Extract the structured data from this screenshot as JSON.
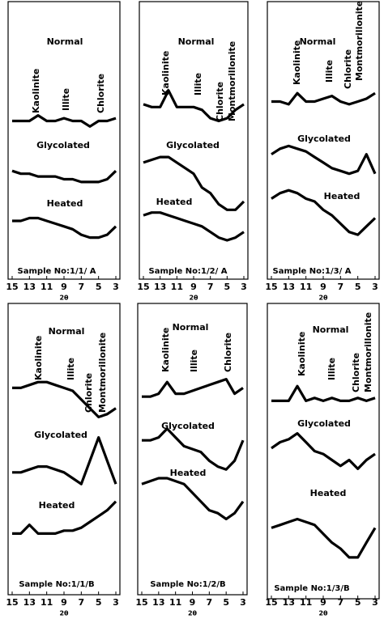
{
  "chart_data": [
    {
      "type": "line",
      "sample": "Sample No:1/1/ A",
      "xlabel": "2θ",
      "xlim": [
        15,
        3
      ],
      "xticks": [
        15,
        13,
        11,
        9,
        7,
        5,
        3
      ],
      "ylim": [
        0,
        100
      ],
      "x": [
        15,
        14,
        13,
        12,
        11,
        10,
        9,
        8,
        7,
        6,
        5,
        4,
        3
      ],
      "peaks": [
        "Kaolinite",
        "Illite",
        "Chlorite"
      ],
      "series": [
        {
          "name": "Normal",
          "color": "#000000",
          "values": [
            57,
            57,
            57,
            59,
            57,
            57,
            58,
            57,
            57,
            55,
            57,
            57,
            58
          ]
        },
        {
          "name": "Glycolated",
          "color": "#000000",
          "values": [
            39,
            38,
            38,
            37,
            37,
            37,
            36,
            36,
            35,
            35,
            35,
            36,
            39
          ]
        },
        {
          "name": "Heated",
          "color": "#000000",
          "values": [
            21,
            21,
            22,
            22,
            21,
            20,
            19,
            18,
            16,
            15,
            15,
            16,
            19
          ]
        }
      ]
    },
    {
      "type": "line",
      "sample": "Sample No:1/2/ A",
      "xlabel": "2θ",
      "xlim": [
        15,
        3
      ],
      "xticks": [
        15,
        13,
        11,
        9,
        7,
        5,
        3
      ],
      "ylim": [
        0,
        100
      ],
      "x": [
        15,
        14,
        13,
        12,
        11,
        10,
        9,
        8,
        7,
        6,
        5,
        4,
        3
      ],
      "peaks": [
        "Kaolinite",
        "Illite",
        "Chlorite",
        "Montmorillonite"
      ],
      "series": [
        {
          "name": "Normal",
          "color": "#000000",
          "values": [
            63,
            62,
            62,
            68,
            62,
            62,
            62,
            61,
            58,
            57,
            58,
            61,
            63
          ]
        },
        {
          "name": "Glycolated",
          "color": "#000000",
          "values": [
            42,
            43,
            44,
            44,
            42,
            40,
            38,
            33,
            31,
            27,
            25,
            25,
            28
          ]
        },
        {
          "name": "Heated",
          "color": "#000000",
          "values": [
            23,
            24,
            24,
            23,
            22,
            21,
            20,
            19,
            17,
            15,
            14,
            15,
            17
          ]
        }
      ]
    },
    {
      "type": "line",
      "sample": "Sample No:1/3/ A",
      "xlabel": "2θ",
      "xlim": [
        15,
        3
      ],
      "xticks": [
        15,
        13,
        11,
        9,
        7,
        5,
        3
      ],
      "ylim": [
        0,
        100
      ],
      "x": [
        15,
        14,
        13,
        12,
        11,
        10,
        9,
        8,
        7,
        6,
        5,
        4,
        3
      ],
      "peaks": [
        "Kaolinite",
        "Illite",
        "Chlorite",
        "Montmorillonite"
      ],
      "series": [
        {
          "name": "Normal",
          "color": "#000000",
          "values": [
            64,
            64,
            63,
            67,
            64,
            64,
            65,
            66,
            64,
            63,
            64,
            65,
            67
          ]
        },
        {
          "name": "Glycolated",
          "color": "#000000",
          "values": [
            45,
            47,
            48,
            47,
            46,
            44,
            42,
            40,
            39,
            38,
            39,
            45,
            38
          ]
        },
        {
          "name": "Heated",
          "color": "#000000",
          "values": [
            29,
            31,
            32,
            31,
            29,
            28,
            25,
            23,
            20,
            17,
            16,
            19,
            22
          ]
        }
      ]
    },
    {
      "type": "line",
      "sample": "Sample No:1/1/B",
      "xlabel": "2θ",
      "xlim": [
        15,
        3
      ],
      "xticks": [
        15,
        13,
        11,
        9,
        7,
        5,
        3
      ],
      "ylim": [
        0,
        100
      ],
      "x": [
        15,
        14,
        13,
        12,
        11,
        10,
        9,
        8,
        7,
        6,
        5,
        4,
        3
      ],
      "peaks": [
        "Kaolinite",
        "Illite",
        "Chlorite",
        "Montmorillonite"
      ],
      "series": [
        {
          "name": "Normal",
          "color": "#000000",
          "values": [
            71,
            71,
            72,
            73,
            73,
            72,
            71,
            70,
            67,
            64,
            61,
            62,
            64
          ]
        },
        {
          "name": "Glycolated",
          "color": "#000000",
          "values": [
            42,
            42,
            43,
            44,
            44,
            43,
            42,
            40,
            38,
            46,
            54,
            46,
            38
          ]
        },
        {
          "name": "Heated",
          "color": "#000000",
          "values": [
            21,
            21,
            24,
            21,
            21,
            21,
            22,
            22,
            23,
            25,
            27,
            29,
            32
          ]
        }
      ]
    },
    {
      "type": "line",
      "sample": "Sample No:1/2/B",
      "xlabel": "2θ",
      "xlim": [
        15,
        3
      ],
      "xticks": [
        15,
        13,
        11,
        9,
        7,
        5,
        3
      ],
      "ylim": [
        0,
        100
      ],
      "x": [
        15,
        14,
        13,
        12,
        11,
        10,
        9,
        8,
        7,
        6,
        5,
        4,
        3
      ],
      "peaks": [
        "Kaolinite",
        "Illite",
        "Chlorite"
      ],
      "series": [
        {
          "name": "Normal",
          "color": "#000000",
          "values": [
            68,
            68,
            69,
            73,
            69,
            69,
            70,
            71,
            72,
            73,
            74,
            69,
            71
          ]
        },
        {
          "name": "Glycolated",
          "color": "#000000",
          "values": [
            53,
            53,
            54,
            57,
            54,
            51,
            50,
            49,
            46,
            44,
            43,
            46,
            53
          ]
        },
        {
          "name": "Heated",
          "color": "#000000",
          "values": [
            38,
            39,
            40,
            40,
            39,
            38,
            35,
            32,
            29,
            28,
            26,
            28,
            32
          ]
        }
      ]
    },
    {
      "type": "line",
      "sample": "Sample No:1/3/B",
      "xlabel": "2θ",
      "xlim": [
        15,
        3
      ],
      "xticks": [
        15,
        13,
        11,
        9,
        7,
        5,
        3
      ],
      "ylim": [
        0,
        100
      ],
      "x": [
        15,
        14,
        13,
        12,
        11,
        10,
        9,
        8,
        7,
        6,
        5,
        4,
        3
      ],
      "peaks": [
        "Kaolinite",
        "Illite",
        "Chlorite",
        "Montmorillonite"
      ],
      "series": [
        {
          "name": "Normal",
          "color": "#000000",
          "values": [
            67,
            67,
            67,
            72,
            67,
            68,
            67,
            68,
            67,
            67,
            68,
            67,
            68
          ]
        },
        {
          "name": "Glycolated",
          "color": "#000000",
          "values": [
            51,
            53,
            54,
            56,
            53,
            50,
            49,
            47,
            45,
            47,
            44,
            47,
            49
          ]
        },
        {
          "name": "Heated",
          "color": "#000000",
          "values": [
            24,
            25,
            26,
            27,
            26,
            25,
            22,
            19,
            17,
            14,
            14,
            19,
            24
          ]
        }
      ]
    }
  ]
}
